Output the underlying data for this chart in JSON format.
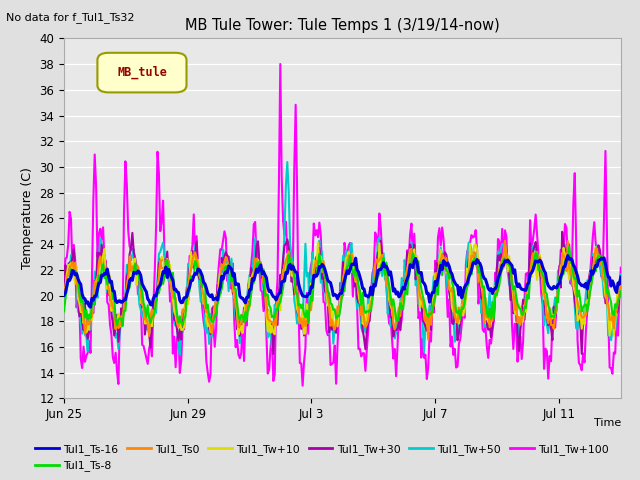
{
  "title": "MB Tule Tower: Tule Temps 1 (3/19/14-now)",
  "top_left_note": "No data for f_Tul1_Ts32",
  "xlabel": "Time",
  "ylabel": "Temperature (C)",
  "ylim": [
    12,
    40
  ],
  "yticks": [
    12,
    14,
    16,
    18,
    20,
    22,
    24,
    26,
    28,
    30,
    32,
    34,
    36,
    38,
    40
  ],
  "fig_bg": "#e0e0e0",
  "plot_bg": "#e8e8e8",
  "grid_color": "#ffffff",
  "legend_box_label": "MB_tule",
  "legend_box_bg": "#ffffcc",
  "legend_box_border": "#999900",
  "series": [
    {
      "label": "Tul1_Ts-16",
      "color": "#0000dd",
      "lw": 2.2,
      "zorder": 5
    },
    {
      "label": "Tul1_Ts-8",
      "color": "#00dd00",
      "lw": 1.5,
      "zorder": 4
    },
    {
      "label": "Tul1_Ts0",
      "color": "#ff8800",
      "lw": 1.5,
      "zorder": 4
    },
    {
      "label": "Tul1_Tw+10",
      "color": "#dddd00",
      "lw": 1.5,
      "zorder": 4
    },
    {
      "label": "Tul1_Tw+30",
      "color": "#aa00aa",
      "lw": 1.5,
      "zorder": 4
    },
    {
      "label": "Tul1_Tw+50",
      "color": "#00cccc",
      "lw": 1.5,
      "zorder": 4
    },
    {
      "label": "Tul1_Tw+100",
      "color": "#ff00ff",
      "lw": 1.5,
      "zorder": 3
    }
  ],
  "x_tick_labels": [
    "Jun 25",
    "Jun 29",
    "Jul 3",
    "Jul 7",
    "Jul 11"
  ],
  "x_tick_positions": [
    0,
    4,
    8,
    12,
    16
  ],
  "seed": 42
}
